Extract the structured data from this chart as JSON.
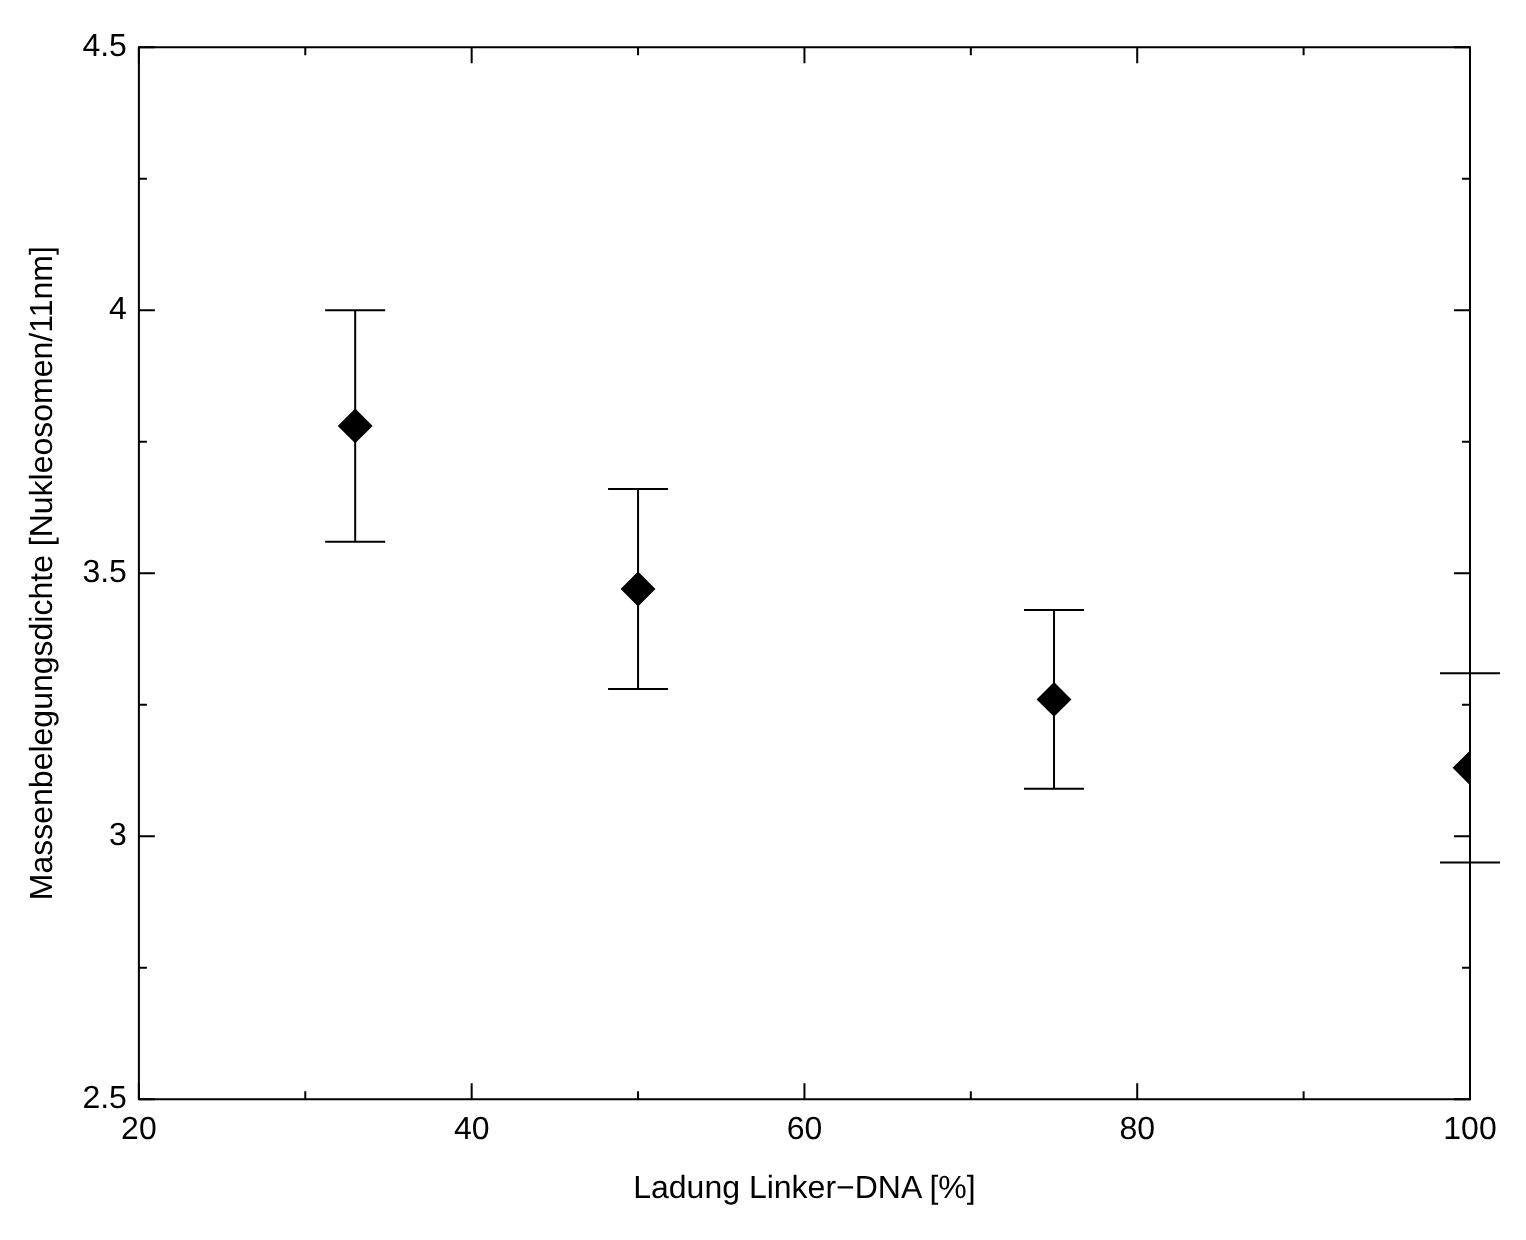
{
  "chart_data": {
    "type": "scatter",
    "xlabel": "Ladung Linker−DNA [%]",
    "ylabel": "Massenbelegungsdichte [Nukleosomen/11nm]",
    "x": [
      33,
      50,
      75,
      100
    ],
    "values": [
      3.78,
      3.47,
      3.26,
      3.13
    ],
    "errors": [
      [
        3.56,
        4.0
      ],
      [
        3.28,
        3.66
      ],
      [
        3.09,
        3.43
      ],
      [
        2.95,
        3.31
      ]
    ],
    "color": "#000000",
    "marker": "diamond",
    "grid": false,
    "legend": false,
    "xlim": [
      20,
      100
    ],
    "xticks": [
      20,
      {
        "value": 30,
        "label": null
      },
      40,
      {
        "value": 50,
        "label": null
      },
      60,
      {
        "value": 70,
        "label": null
      },
      80,
      {
        "value": 90,
        "label": null
      },
      100
    ],
    "ylim": [
      2.5,
      4.5
    ],
    "yticks": [
      2.5,
      {
        "value": 2.75,
        "label": null
      },
      3,
      {
        "value": 3.25,
        "label": null
      },
      3.5,
      {
        "value": 3.75,
        "label": null
      },
      4,
      {
        "value": 4.25,
        "label": null
      },
      4.5
    ]
  }
}
